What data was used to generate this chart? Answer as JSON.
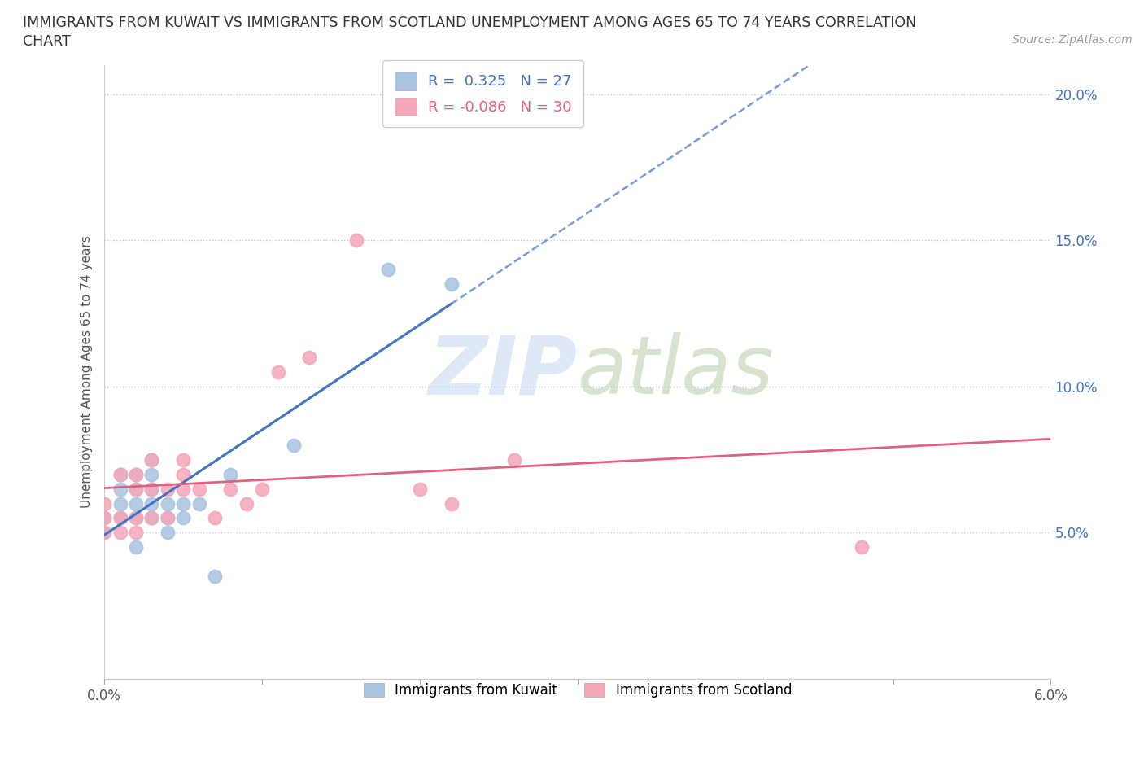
{
  "title_line1": "IMMIGRANTS FROM KUWAIT VS IMMIGRANTS FROM SCOTLAND UNEMPLOYMENT AMONG AGES 65 TO 74 YEARS CORRELATION",
  "title_line2": "CHART",
  "source": "Source: ZipAtlas.com",
  "ylabel": "Unemployment Among Ages 65 to 74 years",
  "xlim": [
    0.0,
    0.06
  ],
  "ylim": [
    0.0,
    0.21
  ],
  "kuwait_R": 0.325,
  "kuwait_N": 27,
  "scotland_R": -0.086,
  "scotland_N": 30,
  "kuwait_color": "#a8c4e0",
  "scotland_color": "#f4a7b9",
  "kuwait_line_color": "#4472c4",
  "scotland_line_color": "#e06080",
  "watermark_zip": "ZIP",
  "watermark_atlas": "atlas",
  "kuwait_points_x": [
    0.0,
    0.0,
    0.001,
    0.001,
    0.001,
    0.001,
    0.002,
    0.002,
    0.002,
    0.002,
    0.002,
    0.003,
    0.003,
    0.003,
    0.003,
    0.003,
    0.004,
    0.004,
    0.004,
    0.005,
    0.005,
    0.006,
    0.007,
    0.008,
    0.012,
    0.018,
    0.022
  ],
  "kuwait_points_y": [
    0.05,
    0.055,
    0.055,
    0.06,
    0.065,
    0.07,
    0.045,
    0.055,
    0.06,
    0.065,
    0.07,
    0.055,
    0.06,
    0.065,
    0.07,
    0.075,
    0.05,
    0.055,
    0.06,
    0.055,
    0.06,
    0.06,
    0.035,
    0.07,
    0.08,
    0.14,
    0.135
  ],
  "scotland_points_x": [
    0.0,
    0.0,
    0.0,
    0.001,
    0.001,
    0.001,
    0.002,
    0.002,
    0.002,
    0.002,
    0.003,
    0.003,
    0.003,
    0.004,
    0.004,
    0.005,
    0.005,
    0.005,
    0.006,
    0.007,
    0.008,
    0.009,
    0.01,
    0.011,
    0.013,
    0.016,
    0.02,
    0.022,
    0.026,
    0.048
  ],
  "scotland_points_y": [
    0.05,
    0.055,
    0.06,
    0.05,
    0.055,
    0.07,
    0.05,
    0.055,
    0.065,
    0.07,
    0.055,
    0.065,
    0.075,
    0.055,
    0.065,
    0.065,
    0.07,
    0.075,
    0.065,
    0.055,
    0.065,
    0.06,
    0.065,
    0.105,
    0.11,
    0.15,
    0.065,
    0.06,
    0.075,
    0.045
  ]
}
